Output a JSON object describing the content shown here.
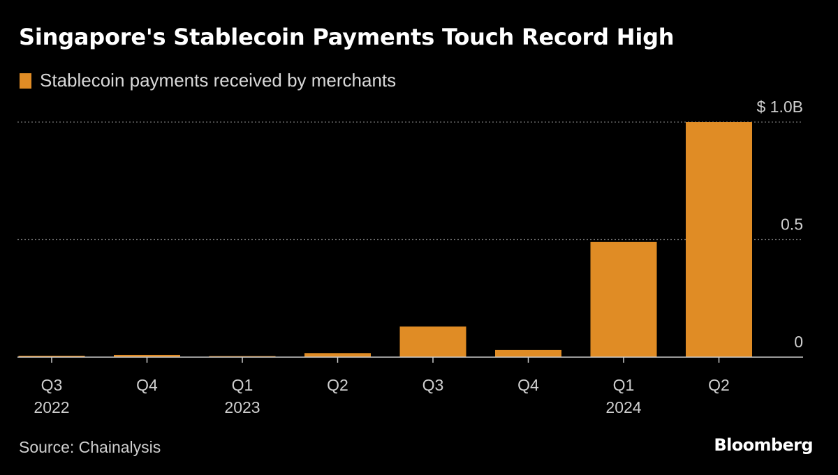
{
  "colors": {
    "background": "#000000",
    "bar": "#e08c25",
    "text": "#ffffff",
    "muted_text": "#cfcfcf",
    "gridline": "#777777",
    "axis": "#cccccc"
  },
  "header": {
    "title": "Singapore's Stablecoin Payments Touch Record High"
  },
  "footer": {
    "source": "Source: Chainalysis",
    "brand": "Bloomberg"
  },
  "chart_data": {
    "type": "bar",
    "title": "Singapore's Stablecoin Payments Touch Record High",
    "xlabel": "",
    "ylabel": "",
    "legend": [
      {
        "name": "Stablecoin payments received by merchants",
        "color": "#e08c25"
      }
    ],
    "legend_position": "top-left",
    "categories": [
      "Q3 2022",
      "Q4 2022",
      "Q1 2023",
      "Q2 2023",
      "Q3 2023",
      "Q4 2023",
      "Q1 2024",
      "Q2 2024"
    ],
    "tick_labels": [
      {
        "quarter": "Q3",
        "year": "2022"
      },
      {
        "quarter": "Q4",
        "year": ""
      },
      {
        "quarter": "Q1",
        "year": "2023"
      },
      {
        "quarter": "Q2",
        "year": ""
      },
      {
        "quarter": "Q3",
        "year": ""
      },
      {
        "quarter": "Q4",
        "year": ""
      },
      {
        "quarter": "Q1",
        "year": "2024"
      },
      {
        "quarter": "Q2",
        "year": ""
      }
    ],
    "series": [
      {
        "name": "Stablecoin payments received by merchants",
        "unit": "billion USD",
        "values": [
          0.006,
          0.009,
          0.004,
          0.017,
          0.13,
          0.03,
          0.49,
          1.0
        ]
      }
    ],
    "ylim": [
      0,
      1.0
    ],
    "yticks": [
      {
        "value": 0,
        "label": "0"
      },
      {
        "value": 0.5,
        "label": "0.5"
      },
      {
        "value": 1.0,
        "label": "$ 1.0B"
      }
    ],
    "grid": "horizontal-dotted",
    "y_axis_side": "right"
  }
}
